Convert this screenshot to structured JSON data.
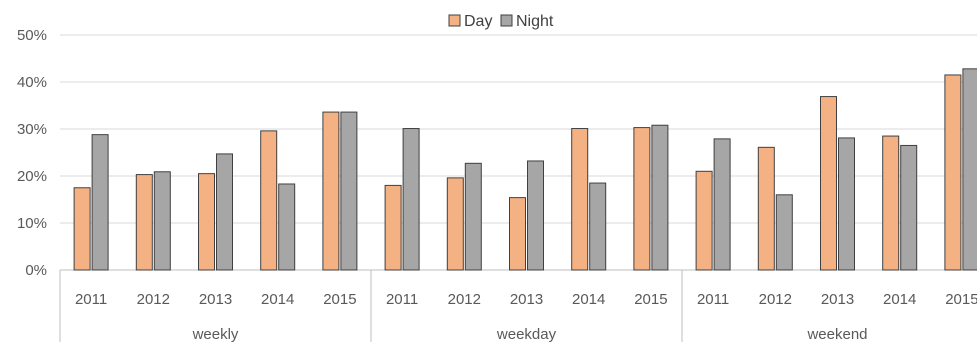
{
  "chart_data": {
    "type": "bar",
    "groups": [
      {
        "label": "weekly",
        "categories": [
          "2011",
          "2012",
          "2013",
          "2014",
          "2015"
        ]
      },
      {
        "label": "weekday",
        "categories": [
          "2011",
          "2012",
          "2013",
          "2014",
          "2015"
        ]
      },
      {
        "label": "weekend",
        "categories": [
          "2011",
          "2012",
          "2013",
          "2014",
          "2015"
        ]
      }
    ],
    "series": [
      {
        "name": "Day",
        "color": "#F4B183",
        "values": [
          17.5,
          20.3,
          20.5,
          29.6,
          33.6,
          18.0,
          19.6,
          15.4,
          30.1,
          30.3,
          21.0,
          26.1,
          36.9,
          28.5,
          41.5
        ]
      },
      {
        "name": "Night",
        "color": "#A6A6A6",
        "values": [
          28.8,
          20.9,
          24.7,
          18.3,
          33.6,
          30.1,
          22.7,
          23.2,
          18.5,
          30.8,
          27.9,
          16.0,
          28.1,
          26.5,
          42.8
        ]
      }
    ],
    "y_ticks": [
      "0%",
      "10%",
      "20%",
      "30%",
      "40%",
      "50%"
    ],
    "ylim": [
      0,
      50
    ],
    "y_unit": "%",
    "grid": true,
    "legend": "top-center"
  }
}
